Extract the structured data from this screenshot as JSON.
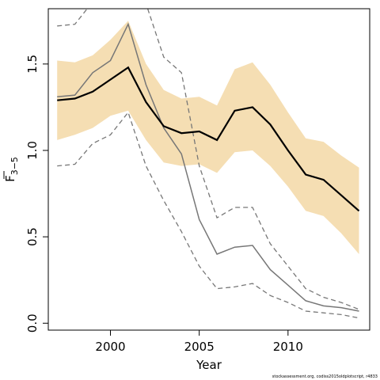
{
  "chart_data": {
    "type": "line",
    "xlabel": "Year",
    "ylabel_main": "F",
    "ylabel_sub": "3−5",
    "credit": "stockassessment.org, codiss2015oldplotscript, r4833",
    "xlim": [
      1996.5,
      2014.6
    ],
    "ylim": [
      -0.04,
      1.82
    ],
    "x_ticks": [
      2000,
      2005,
      2010
    ],
    "y_ticks": [
      0.0,
      0.5,
      1.0,
      1.5
    ],
    "x_tick_labels": [
      "2000",
      "2005",
      "2010"
    ],
    "y_tick_labels": [
      "0.0",
      "0.5",
      "1.0",
      "1.5"
    ],
    "colors": {
      "band": "#f5deb3",
      "estimate": "#000000",
      "retro": "#777777"
    },
    "x": [
      1997,
      1998,
      1999,
      2000,
      2001,
      2002,
      2003,
      2004,
      2005,
      2006,
      2007,
      2008,
      2009,
      2010,
      2011,
      2012,
      2013,
      2014
    ],
    "series": [
      {
        "role": "estimate",
        "values": [
          1.29,
          1.3,
          1.34,
          1.41,
          1.48,
          1.28,
          1.14,
          1.1,
          1.11,
          1.06,
          1.23,
          1.25,
          1.15,
          1.0,
          0.86,
          0.83,
          0.74,
          0.65
        ]
      },
      {
        "role": "band_upper",
        "values": [
          1.52,
          1.51,
          1.55,
          1.64,
          1.75,
          1.5,
          1.35,
          1.3,
          1.31,
          1.26,
          1.47,
          1.51,
          1.38,
          1.22,
          1.07,
          1.05,
          0.97,
          0.9
        ]
      },
      {
        "role": "band_lower",
        "values": [
          1.06,
          1.09,
          1.13,
          1.2,
          1.23,
          1.06,
          0.93,
          0.91,
          0.92,
          0.87,
          0.99,
          1.0,
          0.91,
          0.79,
          0.65,
          0.62,
          0.52,
          0.4
        ]
      },
      {
        "role": "alt_estimate",
        "values": [
          1.31,
          1.32,
          1.45,
          1.52,
          1.73,
          1.38,
          1.13,
          0.98,
          0.6,
          0.4,
          0.44,
          0.45,
          0.31,
          0.22,
          0.13,
          0.1,
          0.09,
          0.07
        ]
      },
      {
        "role": "alt_upper",
        "values": [
          1.72,
          1.73,
          1.86,
          1.95,
          2.0,
          1.85,
          1.54,
          1.45,
          0.91,
          0.61,
          0.67,
          0.67,
          0.46,
          0.33,
          0.2,
          0.15,
          0.12,
          0.08
        ]
      },
      {
        "role": "alt_lower",
        "values": [
          0.91,
          0.92,
          1.04,
          1.09,
          1.22,
          0.91,
          0.71,
          0.53,
          0.33,
          0.2,
          0.21,
          0.23,
          0.16,
          0.12,
          0.07,
          0.06,
          0.05,
          0.03
        ]
      }
    ]
  }
}
